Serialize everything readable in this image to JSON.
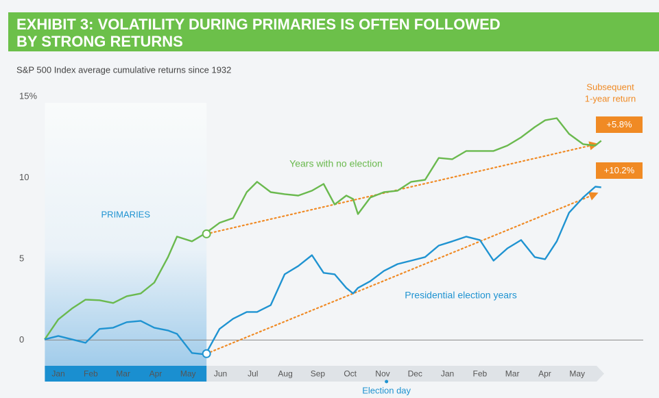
{
  "chart_data": {
    "type": "line",
    "title": "EXHIBIT 3:  VOLATILITY DURING PRIMARIES IS OFTEN FOLLOWED BY STRONG RETURNS",
    "subtitle": "S&P 500 Index average cumulative returns since 1932",
    "xlim": [
      0,
      17.5
    ],
    "xticks": [
      {
        "value": 0.5,
        "label": "Jan"
      },
      {
        "value": 1.5,
        "label": "Feb"
      },
      {
        "value": 2.5,
        "label": "Mar"
      },
      {
        "value": 3.5,
        "label": "Apr"
      },
      {
        "value": 4.5,
        "label": "May"
      },
      {
        "value": 5.5,
        "label": "Jun"
      },
      {
        "value": 6.5,
        "label": "Jul"
      },
      {
        "value": 7.5,
        "label": "Aug"
      },
      {
        "value": 8.5,
        "label": "Sep"
      },
      {
        "value": 9.5,
        "label": "Oct"
      },
      {
        "value": 10.5,
        "label": "Nov"
      },
      {
        "value": 11.5,
        "label": "Dec"
      },
      {
        "value": 12.5,
        "label": "Jan"
      },
      {
        "value": 13.5,
        "label": "Feb"
      },
      {
        "value": 14.5,
        "label": "Mar"
      },
      {
        "value": 15.5,
        "label": "Apr"
      },
      {
        "value": 16.5,
        "label": "May"
      }
    ],
    "ylim": [
      -1.8,
      15
    ],
    "yticks": [
      0,
      5,
      10,
      {
        "value": 15,
        "label": "15%"
      }
    ],
    "x": [
      0.08,
      0.5,
      0.92,
      1.34,
      1.77,
      2.19,
      2.61,
      3.04,
      3.46,
      3.88,
      4.16,
      4.62,
      5.04,
      5.47,
      5.89,
      6.31,
      6.63,
      7.05,
      7.48,
      7.9,
      8.32,
      8.68,
      9.02,
      9.38,
      9.59,
      9.74,
      10.12,
      10.54,
      10.96,
      11.38,
      11.81,
      12.23,
      12.65,
      13.08,
      13.5,
      13.92,
      14.35,
      14.77,
      15.19,
      15.51,
      15.87,
      16.25,
      16.68,
      17.06,
      17.24
    ],
    "series": [
      {
        "name": "Years with no election",
        "color": "#6ab94e",
        "values": [
          0.04,
          1.27,
          1.94,
          2.49,
          2.45,
          2.28,
          2.7,
          2.87,
          3.54,
          5.1,
          6.37,
          6.08,
          6.58,
          7.22,
          7.51,
          9.11,
          9.75,
          9.11,
          8.99,
          8.9,
          9.2,
          9.62,
          8.35,
          8.9,
          8.69,
          7.76,
          8.78,
          9.11,
          9.2,
          9.75,
          9.87,
          11.22,
          11.14,
          11.65,
          11.65,
          11.65,
          11.98,
          12.49,
          13.12,
          13.54,
          13.67,
          12.7,
          12.07,
          11.98,
          12.28
        ]
      },
      {
        "name": "Presidential election years",
        "color": "#1f93d1",
        "values": [
          0.04,
          0.25,
          0.04,
          -0.17,
          0.68,
          0.76,
          1.1,
          1.18,
          0.76,
          0.59,
          0.38,
          -0.8,
          -0.89,
          0.68,
          1.31,
          1.73,
          1.73,
          2.15,
          4.05,
          4.56,
          5.23,
          4.14,
          4.05,
          3.21,
          2.87,
          3.21,
          3.63,
          4.26,
          4.68,
          4.89,
          5.11,
          5.82,
          6.08,
          6.37,
          6.16,
          4.89,
          5.65,
          6.16,
          5.11,
          4.98,
          6.08,
          7.85,
          8.78,
          9.45,
          9.41
        ]
      }
    ],
    "trend_lines": [
      {
        "x": [
          5.07,
          17.1
        ],
        "y": [
          6.54,
          12.07
        ]
      },
      {
        "x": [
          5.07,
          17.1
        ],
        "y": [
          -0.84,
          9.03
        ]
      }
    ],
    "returns": [
      5.8,
      10.2
    ],
    "return_labels": [
      "+5.8%",
      "+10.2%"
    ],
    "returns_title": [
      "Subsequent",
      "1-year return"
    ],
    "shaded_range": [
      0,
      5.07
    ],
    "shaded_label": "PRIMARIES",
    "event_x": 10.62,
    "event_label": "Election day",
    "trend_color": "#f08a24"
  }
}
